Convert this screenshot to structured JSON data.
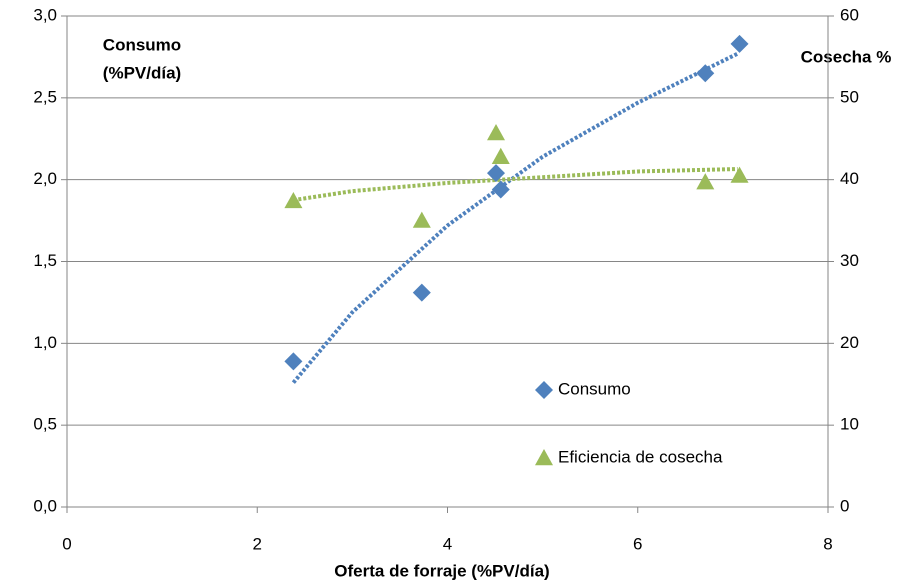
{
  "chart_data": {
    "type": "scatter",
    "x_label": "Oferta de forraje (%PV/día)",
    "y_label": [
      "Consumo",
      "(%PV/día)"
    ],
    "y2_label": "Cosecha %",
    "xlim": [
      0,
      8
    ],
    "xticks": [
      0,
      2,
      4,
      6,
      8
    ],
    "ylim": [
      0,
      3
    ],
    "yticks": [
      {
        "value": 0,
        "label": "0,0"
      },
      {
        "value": 0.5,
        "label": "0,5"
      },
      {
        "value": 1,
        "label": "1,0"
      },
      {
        "value": 1.5,
        "label": "1,5"
      },
      {
        "value": 2,
        "label": "2,0"
      },
      {
        "value": 2.5,
        "label": "2,5"
      },
      {
        "value": 3,
        "label": "3,0"
      }
    ],
    "y2lim": [
      0,
      60
    ],
    "y2ticks": [
      0,
      10,
      20,
      30,
      40,
      50,
      60
    ],
    "grid": true,
    "legend": "inside-bottom-right",
    "series": [
      {
        "name": "Consumo",
        "color": "#4f81bd",
        "marker": "diamond",
        "x": [
          2.38,
          3.73,
          4.51,
          4.56,
          6.71,
          7.07
        ],
        "values": [
          0.89,
          1.31,
          2.04,
          1.94,
          2.65,
          2.83
        ]
      },
      {
        "name": "Eficiencia de cosecha",
        "color": "#9bbb59",
        "marker": "triangle",
        "axis": "y2",
        "x": [
          2.38,
          3.73,
          4.51,
          4.56,
          6.71,
          7.07
        ],
        "values": [
          37.4,
          35.0,
          45.7,
          42.8,
          39.7,
          40.5
        ]
      }
    ],
    "trendlines": [
      {
        "color": "#4f81bd",
        "x": [
          2.38,
          3,
          4,
          5,
          6,
          7.05
        ],
        "values": [
          0.76,
          1.19,
          1.72,
          2.14,
          2.47,
          2.77
        ]
      },
      {
        "color": "#9bbb59",
        "axis": "y2",
        "x": [
          2.38,
          3,
          4,
          5,
          6,
          7.05
        ],
        "values": [
          37.5,
          38.6,
          39.6,
          40.3,
          41.0,
          41.3
        ]
      }
    ]
  }
}
